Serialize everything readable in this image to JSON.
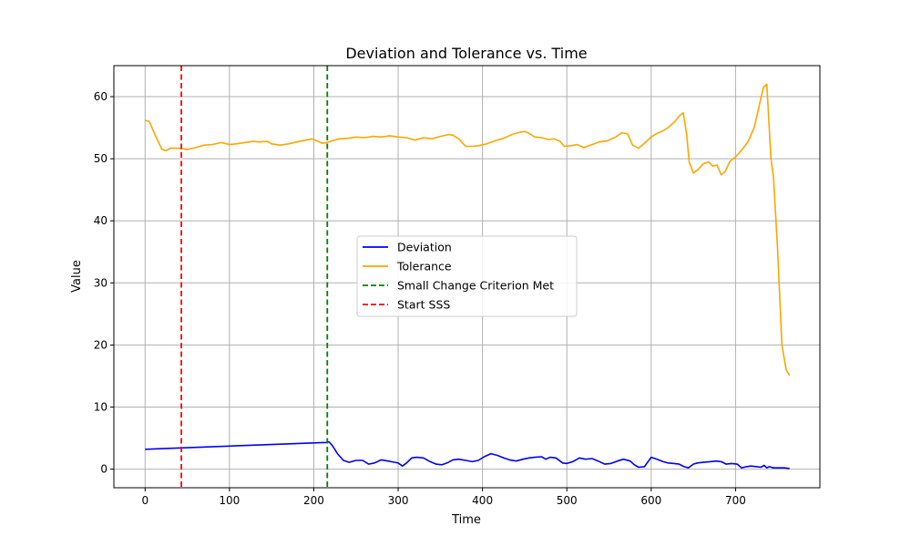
{
  "chart_data": {
    "type": "line",
    "title": "Deviation and Tolerance vs. Time",
    "xlabel": "Time",
    "ylabel": "Value",
    "xlim": [
      -37,
      800
    ],
    "ylim": [
      -3,
      65
    ],
    "xticks": [
      0,
      100,
      200,
      300,
      400,
      500,
      600,
      700
    ],
    "yticks": [
      0,
      10,
      20,
      30,
      40,
      50,
      60
    ],
    "grid": true,
    "legend_position": "center",
    "series": [
      {
        "name": "Deviation",
        "color": "#0000ff",
        "x": [
          0,
          215,
          218,
          222,
          228,
          235,
          242,
          250,
          258,
          265,
          272,
          280,
          288,
          296,
          300,
          305,
          310,
          316,
          322,
          330,
          338,
          345,
          352,
          358,
          365,
          372,
          380,
          388,
          395,
          402,
          410,
          418,
          425,
          432,
          440,
          448,
          455,
          462,
          470,
          475,
          480,
          487,
          495,
          500,
          507,
          515,
          522,
          530,
          537,
          545,
          552,
          560,
          567,
          575,
          580,
          585,
          592,
          600,
          607,
          614,
          620,
          627,
          633,
          639,
          644,
          650,
          655,
          662,
          670,
          677,
          683,
          689,
          695,
          702,
          707,
          713,
          718,
          725,
          730,
          734,
          737,
          740,
          745,
          752,
          758,
          764
        ],
        "y": [
          3.2,
          4.3,
          4.4,
          3.8,
          2.5,
          1.4,
          1.1,
          1.4,
          1.4,
          0.8,
          1.0,
          1.5,
          1.3,
          1.1,
          1.0,
          0.5,
          1.0,
          1.8,
          1.9,
          1.8,
          1.2,
          0.8,
          0.7,
          1.0,
          1.5,
          1.6,
          1.4,
          1.2,
          1.4,
          2.0,
          2.5,
          2.2,
          1.8,
          1.5,
          1.3,
          1.6,
          1.8,
          1.9,
          2.0,
          1.6,
          1.9,
          1.8,
          1.0,
          0.9,
          1.2,
          1.8,
          1.6,
          1.7,
          1.3,
          0.8,
          0.9,
          1.3,
          1.6,
          1.3,
          0.7,
          0.3,
          0.4,
          1.9,
          1.6,
          1.2,
          1.0,
          0.9,
          0.8,
          0.4,
          0.2,
          0.8,
          1.0,
          1.1,
          1.2,
          1.3,
          1.2,
          0.8,
          0.9,
          0.8,
          0.2,
          0.4,
          0.5,
          0.4,
          0.3,
          0.6,
          0.2,
          0.4,
          0.2,
          0.2,
          0.2,
          0.1
        ]
      },
      {
        "name": "Tolerance",
        "color": "#ffa500",
        "x": [
          0,
          5,
          12,
          20,
          25,
          30,
          38,
          45,
          50,
          60,
          70,
          80,
          90,
          97,
          100,
          108,
          118,
          128,
          135,
          145,
          150,
          160,
          170,
          180,
          190,
          198,
          205,
          210,
          215,
          222,
          230,
          240,
          250,
          260,
          270,
          280,
          290,
          300,
          310,
          320,
          330,
          340,
          350,
          360,
          365,
          372,
          380,
          388,
          395,
          405,
          415,
          425,
          435,
          445,
          450,
          455,
          462,
          470,
          478,
          485,
          492,
          497,
          505,
          512,
          520,
          528,
          538,
          548,
          558,
          565,
          572,
          578,
          585,
          592,
          600,
          607,
          614,
          620,
          628,
          634,
          638,
          642,
          645,
          650,
          655,
          662,
          668,
          673,
          678,
          683,
          688,
          693,
          700,
          708,
          715,
          722,
          728,
          733,
          737,
          740,
          742,
          745,
          750,
          755,
          760,
          764
        ],
        "y": [
          56.2,
          56.0,
          53.8,
          51.5,
          51.3,
          51.7,
          51.7,
          51.6,
          51.5,
          51.8,
          52.2,
          52.3,
          52.6,
          52.4,
          52.3,
          52.4,
          52.6,
          52.8,
          52.7,
          52.8,
          52.4,
          52.2,
          52.4,
          52.7,
          53.0,
          53.2,
          52.8,
          52.5,
          52.6,
          52.9,
          53.2,
          53.3,
          53.5,
          53.4,
          53.6,
          53.5,
          53.7,
          53.5,
          53.4,
          53.0,
          53.4,
          53.2,
          53.6,
          53.9,
          53.8,
          53.2,
          52.0,
          52.0,
          52.1,
          52.4,
          52.9,
          53.3,
          53.9,
          54.3,
          54.4,
          54.1,
          53.5,
          53.4,
          53.1,
          53.2,
          52.8,
          52.0,
          52.1,
          52.3,
          51.8,
          52.2,
          52.7,
          52.9,
          53.5,
          54.2,
          54.0,
          52.2,
          51.7,
          52.5,
          53.5,
          54.1,
          54.5,
          55.0,
          56.0,
          57.0,
          57.4,
          54.0,
          49.5,
          47.7,
          48.2,
          49.2,
          49.5,
          48.8,
          49.0,
          47.4,
          48.0,
          49.5,
          50.3,
          51.5,
          52.8,
          55.0,
          58.5,
          61.5,
          62.0,
          55.0,
          50.0,
          47.0,
          35.0,
          20.0,
          16.0,
          15.1
        ]
      },
      {
        "name": "Small Change Criterion Met",
        "color": "#008000",
        "style": "dashed",
        "type": "vline",
        "x": 216
      },
      {
        "name": "Start SSS",
        "color": "#ff0000",
        "style": "dashed",
        "type": "vline",
        "x": 43
      }
    ]
  }
}
